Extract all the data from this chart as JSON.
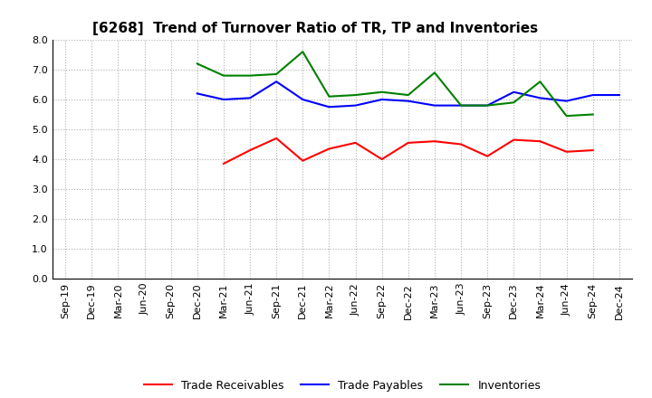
{
  "title": "[6268]  Trend of Turnover Ratio of TR, TP and Inventories",
  "xlabel": "",
  "ylabel": "",
  "ylim": [
    0.0,
    8.0
  ],
  "yticks": [
    0.0,
    1.0,
    2.0,
    3.0,
    4.0,
    5.0,
    6.0,
    7.0,
    8.0
  ],
  "x_labels": [
    "Sep-19",
    "Dec-19",
    "Mar-20",
    "Jun-20",
    "Sep-20",
    "Dec-20",
    "Mar-21",
    "Jun-21",
    "Sep-21",
    "Dec-21",
    "Mar-22",
    "Jun-22",
    "Sep-22",
    "Dec-22",
    "Mar-23",
    "Jun-23",
    "Sep-23",
    "Dec-23",
    "Mar-24",
    "Jun-24",
    "Sep-24",
    "Dec-24"
  ],
  "trade_receivables": [
    null,
    null,
    null,
    null,
    null,
    null,
    3.85,
    4.3,
    4.7,
    3.95,
    4.35,
    4.55,
    4.0,
    4.55,
    4.6,
    4.5,
    4.1,
    4.65,
    4.6,
    4.25,
    4.3,
    null
  ],
  "trade_payables": [
    null,
    null,
    null,
    null,
    null,
    6.2,
    6.0,
    6.05,
    6.6,
    6.0,
    5.75,
    5.8,
    6.0,
    5.95,
    5.8,
    5.8,
    5.8,
    6.25,
    6.05,
    5.95,
    6.15,
    6.15
  ],
  "inventories": [
    null,
    null,
    null,
    null,
    null,
    7.2,
    6.8,
    6.8,
    6.85,
    7.6,
    6.1,
    6.15,
    6.25,
    6.15,
    6.9,
    5.8,
    5.8,
    5.9,
    6.6,
    5.45,
    5.5,
    null
  ],
  "tr_color": "#ff0000",
  "tp_color": "#0000ff",
  "inv_color": "#008000",
  "legend_labels": [
    "Trade Receivables",
    "Trade Payables",
    "Inventories"
  ],
  "background_color": "#ffffff",
  "grid_color": "#b0b0b0",
  "title_fontsize": 11,
  "tick_fontsize": 8,
  "legend_fontsize": 9
}
